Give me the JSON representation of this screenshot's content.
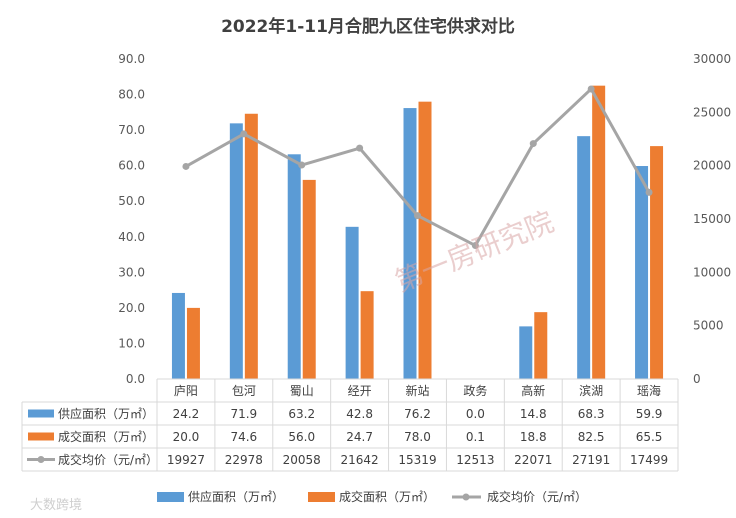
{
  "chart_data": {
    "type": "bar",
    "title": "2022年1-11月合肥九区住宅供求对比",
    "categories": [
      "庐阳",
      "包河",
      "蜀山",
      "经开",
      "新站",
      "政务",
      "高新",
      "滨湖",
      "瑶海"
    ],
    "series": [
      {
        "name": "供应面积（万㎡）",
        "type": "bar",
        "axis": "left",
        "color": "#5b9bd5",
        "values": [
          24.2,
          71.9,
          63.2,
          42.8,
          76.2,
          0.0,
          14.8,
          68.3,
          59.9
        ],
        "labels": [
          "24.2",
          "71.9",
          "63.2",
          "42.8",
          "76.2",
          "0.0",
          "14.8",
          "68.3",
          "59.9"
        ]
      },
      {
        "name": "成交面积（万㎡）",
        "type": "bar",
        "axis": "left",
        "color": "#ed7d31",
        "values": [
          20.0,
          74.6,
          56.0,
          24.7,
          78.0,
          0.1,
          18.8,
          82.5,
          65.5
        ],
        "labels": [
          "20.0",
          "74.6",
          "56.0",
          "24.7",
          "78.0",
          "0.1",
          "18.8",
          "82.5",
          "65.5"
        ]
      },
      {
        "name": "成交均价（元/㎡）",
        "type": "line",
        "axis": "right",
        "color": "#a5a5a5",
        "values": [
          19927,
          22978,
          20058,
          21642,
          15319,
          12513,
          22071,
          27191,
          17499
        ],
        "labels": [
          "19927",
          "22978",
          "20058",
          "21642",
          "15319",
          "12513",
          "22071",
          "27191",
          "17499"
        ]
      }
    ],
    "y_left": {
      "min": 0,
      "max": 90,
      "ticks": [
        "0.0",
        "10.0",
        "20.0",
        "30.0",
        "40.0",
        "50.0",
        "60.0",
        "70.0",
        "80.0",
        "90.0"
      ]
    },
    "y_right": {
      "min": 0,
      "max": 30000,
      "ticks": [
        "0",
        "5000",
        "10000",
        "15000",
        "20000",
        "25000",
        "30000"
      ]
    },
    "legend_position": "bottom",
    "data_table": true,
    "grid": false
  },
  "watermarks": {
    "center": "第一房研究院",
    "corner": "大数跨境"
  },
  "colors": {
    "axis": "#d9d9d9",
    "text": "#595959"
  }
}
